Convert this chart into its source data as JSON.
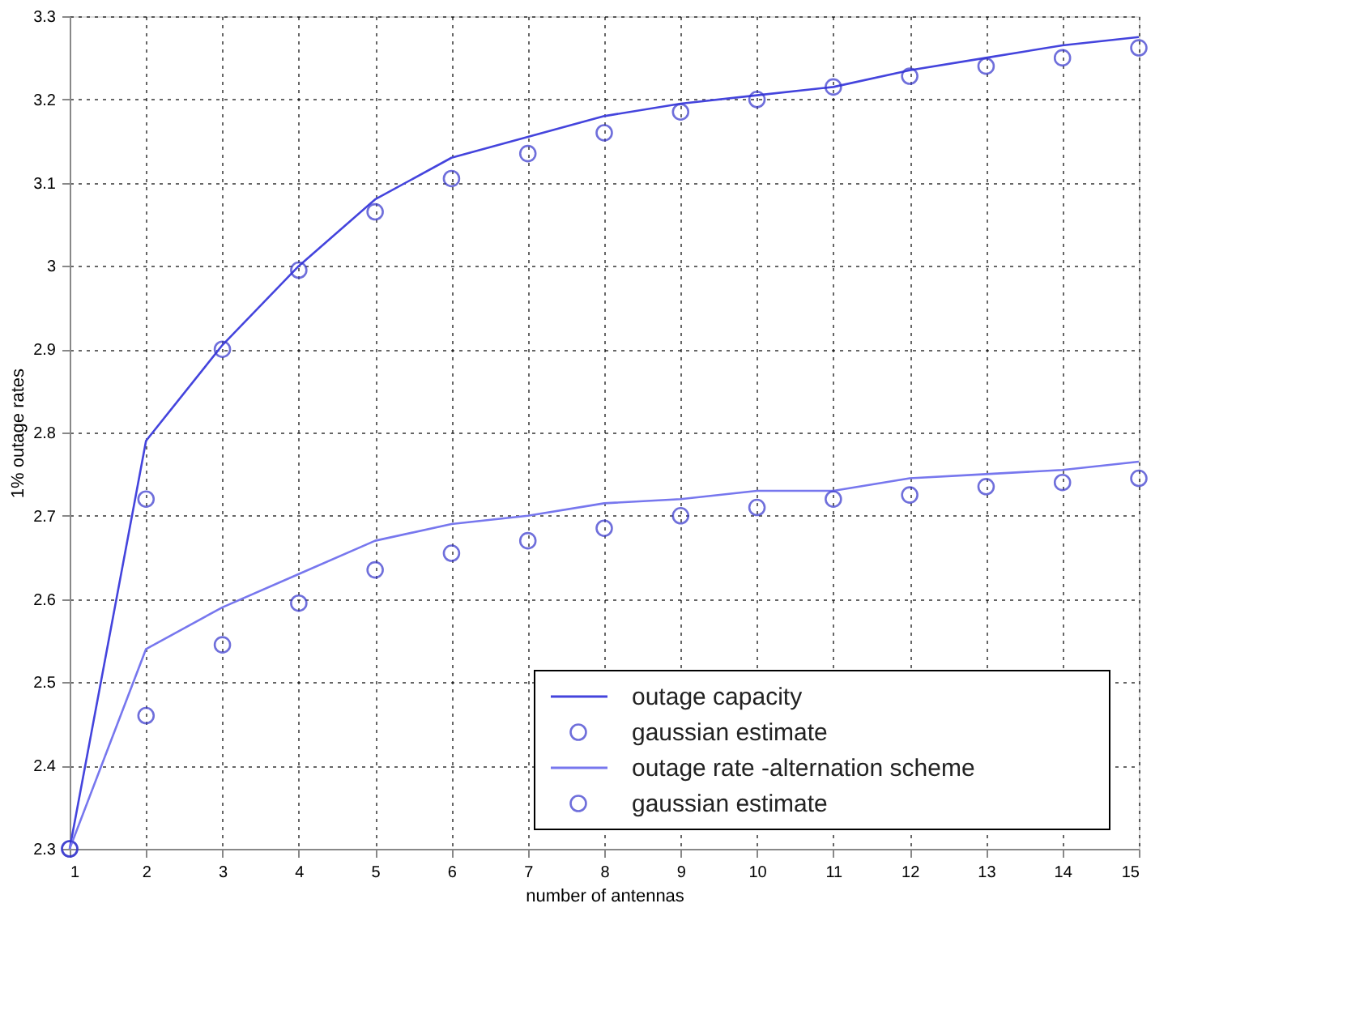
{
  "chart_data": {
    "type": "line",
    "xlabel": "number of antennas",
    "ylabel": "1% outage rates",
    "x": [
      1,
      2,
      3,
      4,
      5,
      6,
      7,
      8,
      9,
      10,
      11,
      12,
      13,
      14,
      15
    ],
    "series": [
      {
        "name": "outage capacity",
        "color": "#4444dd",
        "marker": "none",
        "values": [
          2.3,
          2.79,
          2.905,
          3.0,
          3.08,
          3.13,
          3.155,
          3.18,
          3.195,
          3.205,
          3.215,
          3.235,
          3.25,
          3.265,
          3.275
        ]
      },
      {
        "name": "gaussian estimate",
        "type": "scatter",
        "color": "#3333cc",
        "marker": "circle",
        "values": [
          2.3,
          2.72,
          2.9,
          2.995,
          3.065,
          3.105,
          3.135,
          3.16,
          3.185,
          3.2,
          3.215,
          3.228,
          3.24,
          3.25,
          3.262
        ]
      },
      {
        "name": "outage rate -alternation scheme",
        "color": "#7777ee",
        "marker": "none",
        "values": [
          2.3,
          2.54,
          2.59,
          2.63,
          2.67,
          2.69,
          2.7,
          2.715,
          2.72,
          2.73,
          2.73,
          2.745,
          2.75,
          2.755,
          2.765
        ]
      },
      {
        "name": "gaussian estimate",
        "type": "scatter",
        "color": "#3333cc",
        "marker": "circle",
        "values": [
          2.3,
          2.46,
          2.545,
          2.595,
          2.635,
          2.655,
          2.67,
          2.685,
          2.7,
          2.71,
          2.72,
          2.725,
          2.735,
          2.74,
          2.745
        ]
      }
    ],
    "xlim": [
      1,
      15
    ],
    "xticks": [
      1,
      2,
      3,
      4,
      5,
      6,
      7,
      8,
      9,
      10,
      11,
      12,
      13,
      14,
      15
    ],
    "ylim": [
      2.3,
      3.3
    ],
    "yticks": [
      2.3,
      2.4,
      2.5,
      2.6,
      2.7,
      2.8,
      2.9,
      3,
      3.1,
      3.2,
      3.3
    ],
    "grid": true,
    "legend": "bottom right"
  }
}
